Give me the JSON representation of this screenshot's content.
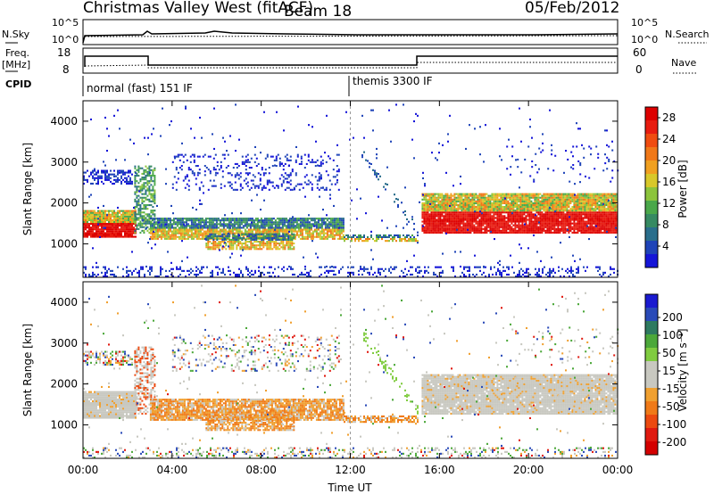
{
  "header": {
    "title": "Christmas Valley West (fitACF)",
    "beam": "Beam 18",
    "date": "05/Feb/2012"
  },
  "strip_labels": {
    "nsky": "N.Sky",
    "nsearch": "N.Search",
    "freq": "Freq.",
    "freq_unit": "[MHz]",
    "nave": "Nave",
    "cpid": "CPID",
    "noise_ticks_left": [
      "10^5",
      "10^0"
    ],
    "noise_ticks_right": [
      "10^5",
      "10^0"
    ],
    "freq_ticks": [
      "18",
      "8"
    ],
    "nave_ticks": [
      "60",
      "0"
    ]
  },
  "cpid_segments": [
    "normal (fast) 151 IF",
    "themis 3300 IF"
  ],
  "colors": {
    "power_scale": [
      "#1515d8",
      "#1f44b8",
      "#2a6e8c",
      "#368a62",
      "#4aa84a",
      "#8cc43c",
      "#d8c82a",
      "#f0a020",
      "#f07818",
      "#f04c10",
      "#e81c10",
      "#dd0000"
    ],
    "velocity_scale": [
      "#1a1ad0",
      "#2a4ab8",
      "#2e7a60",
      "#4ca83a",
      "#80cc40",
      "#c8c8c0",
      "#c8c8c0",
      "#f0a030",
      "#f07a18",
      "#ec4a10",
      "#e01a10",
      "#d40000"
    ]
  },
  "chart_data": [
    {
      "type": "heatmap",
      "panel": "power",
      "ylabel": "Slant Range [km]",
      "xlabel": "Time UT",
      "x_ticks": [
        "00:00",
        "04:00",
        "08:00",
        "12:00",
        "16:00",
        "20:00",
        "00:00"
      ],
      "y_ticks": [
        1000,
        2000,
        3000,
        4000
      ],
      "ylim": [
        180,
        4500
      ],
      "xlim_hours": [
        0,
        24
      ],
      "colorbar_label": "Power [dB]",
      "colorbar_ticks": [
        4,
        8,
        12,
        16,
        20,
        24,
        28
      ],
      "colorbar_range": [
        0,
        30
      ]
    },
    {
      "type": "heatmap",
      "panel": "velocity",
      "ylabel": "Slant Range [km]",
      "xlabel": "Time UT",
      "x_ticks": [
        "00:00",
        "04:00",
        "08:00",
        "12:00",
        "16:00",
        "20:00",
        "00:00"
      ],
      "y_ticks": [
        1000,
        2000,
        3000,
        4000
      ],
      "ylim": [
        180,
        4500
      ],
      "xlim_hours": [
        0,
        24
      ],
      "colorbar_label": "Velocity [m s⁻¹]",
      "colorbar_ticks": [
        200,
        100,
        50,
        15,
        -15,
        -50,
        -100,
        -200
      ]
    }
  ]
}
